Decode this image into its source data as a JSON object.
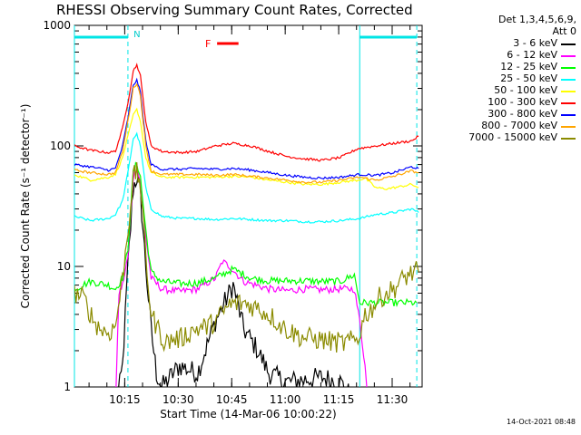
{
  "chart_data": {
    "type": "line",
    "title": "RHESSI Observing Summary Count Rates, Corrected",
    "xlabel": "Start Time (14-Mar-06 10:00:22)",
    "ylabel": "Corrected Count Rate (s⁻¹ detector⁻¹)",
    "y_scale": "log",
    "ylim": [
      1,
      1000
    ],
    "y_ticks": [
      {
        "value": 1,
        "label": "1"
      },
      {
        "value": 10,
        "label": "10"
      },
      {
        "value": 100,
        "label": "100"
      },
      {
        "value": 1000,
        "label": "1000"
      }
    ],
    "xlim_minutes": [
      0.5,
      98
    ],
    "x_ticks": [
      {
        "value": 14.6,
        "label": "10:15"
      },
      {
        "value": 29.6,
        "label": "10:30"
      },
      {
        "value": 44.6,
        "label": "10:45"
      },
      {
        "value": 59.6,
        "label": "11:00"
      },
      {
        "value": 74.6,
        "label": "11:15"
      },
      {
        "value": 89.6,
        "label": "11:30"
      }
    ],
    "legend_header": [
      "Det 1,3,4,5,6,9,",
      "Att 0"
    ],
    "legend_placement": "right",
    "annotations": {
      "night_label": "N",
      "flare_label": "F",
      "night_intervals_minutes": [
        [
          0.5,
          15.5
        ],
        [
          80.5,
          96.5
        ]
      ],
      "flare_interval_minutes": [
        40.5,
        46.5
      ]
    },
    "series": [
      {
        "name": "3 - 6 keV",
        "color": "#000000",
        "points": [
          [
            12,
            0.6
          ],
          [
            14,
            1.5
          ],
          [
            15.5,
            10
          ],
          [
            17,
            45
          ],
          [
            18,
            55
          ],
          [
            19,
            40
          ],
          [
            20.5,
            10
          ],
          [
            22,
            3
          ],
          [
            23.5,
            1.3
          ],
          [
            25,
            1
          ],
          [
            30,
            1.5
          ],
          [
            35,
            1.3
          ],
          [
            40,
            3.5
          ],
          [
            45,
            7
          ],
          [
            48,
            3
          ],
          [
            52,
            2
          ],
          [
            55,
            1.3
          ],
          [
            60,
            1.1
          ],
          [
            70,
            1.2
          ],
          [
            75,
            1.1
          ],
          [
            80,
            0.7
          ]
        ]
      },
      {
        "name": "6 - 12 keV",
        "color": "#ff00ff",
        "points": [
          [
            12,
            0.7
          ],
          [
            13,
            6
          ],
          [
            14,
            7
          ],
          [
            15.5,
            12
          ],
          [
            17,
            55
          ],
          [
            18,
            65
          ],
          [
            19,
            50
          ],
          [
            20.5,
            18
          ],
          [
            22,
            8
          ],
          [
            25,
            6.5
          ],
          [
            30,
            6.2
          ],
          [
            35,
            6.5
          ],
          [
            40,
            8
          ],
          [
            42,
            11
          ],
          [
            44,
            10
          ],
          [
            48,
            7.5
          ],
          [
            55,
            6.5
          ],
          [
            60,
            6.3
          ],
          [
            65,
            6.5
          ],
          [
            70,
            6.4
          ],
          [
            75,
            6.5
          ],
          [
            79,
            6.5
          ],
          [
            80.5,
            3.5
          ],
          [
            82,
            1.5
          ],
          [
            83,
            0.6
          ]
        ]
      },
      {
        "name": "12 - 25 keV",
        "color": "#00ff00",
        "points": [
          [
            0.5,
            6.5
          ],
          [
            5,
            7.5
          ],
          [
            10,
            7
          ],
          [
            12,
            6.5
          ],
          [
            14,
            8
          ],
          [
            15.5,
            14
          ],
          [
            17,
            60
          ],
          [
            18,
            72
          ],
          [
            19,
            55
          ],
          [
            20.5,
            20
          ],
          [
            22,
            9
          ],
          [
            25,
            7.5
          ],
          [
            30,
            7.2
          ],
          [
            35,
            7.3
          ],
          [
            40,
            8
          ],
          [
            45,
            9.5
          ],
          [
            50,
            8
          ],
          [
            55,
            7.6
          ],
          [
            60,
            7.6
          ],
          [
            65,
            7.6
          ],
          [
            70,
            7.5
          ],
          [
            75,
            7.5
          ],
          [
            79,
            8.5
          ],
          [
            80.5,
            5
          ],
          [
            96.5,
            5
          ]
        ]
      },
      {
        "name": "25 - 50 keV",
        "color": "#00ffff",
        "points": [
          [
            0.5,
            26
          ],
          [
            5,
            24
          ],
          [
            10,
            25
          ],
          [
            12,
            27
          ],
          [
            14,
            35
          ],
          [
            15.5,
            60
          ],
          [
            17,
            115
          ],
          [
            18,
            125
          ],
          [
            19,
            100
          ],
          [
            20.5,
            45
          ],
          [
            22,
            30
          ],
          [
            25,
            26
          ],
          [
            30,
            25
          ],
          [
            35,
            25
          ],
          [
            40,
            24.5
          ],
          [
            45,
            25
          ],
          [
            50,
            24.5
          ],
          [
            55,
            24
          ],
          [
            60,
            24
          ],
          [
            65,
            23.5
          ],
          [
            70,
            23.5
          ],
          [
            75,
            24
          ],
          [
            80.5,
            25
          ],
          [
            85,
            27
          ],
          [
            90,
            28
          ],
          [
            95,
            30
          ],
          [
            97,
            28
          ]
        ]
      },
      {
        "name": "50 - 100 keV",
        "color": "#ffff00",
        "points": [
          [
            0.5,
            58
          ],
          [
            5,
            52
          ],
          [
            10,
            55
          ],
          [
            12,
            58
          ],
          [
            14,
            80
          ],
          [
            15.5,
            120
          ],
          [
            17,
            180
          ],
          [
            18,
            200
          ],
          [
            19,
            160
          ],
          [
            20.5,
            80
          ],
          [
            22,
            60
          ],
          [
            25,
            55
          ],
          [
            30,
            55
          ],
          [
            35,
            55
          ],
          [
            40,
            55
          ],
          [
            45,
            56
          ],
          [
            50,
            55
          ],
          [
            55,
            52
          ],
          [
            60,
            50
          ],
          [
            65,
            48
          ],
          [
            70,
            48
          ],
          [
            75,
            50
          ],
          [
            80,
            52
          ],
          [
            82,
            54
          ],
          [
            85,
            45
          ],
          [
            88,
            44
          ],
          [
            92,
            46
          ],
          [
            95,
            48
          ],
          [
            97,
            45
          ]
        ]
      },
      {
        "name": "100 - 300 keV",
        "color": "#ff0000",
        "points": [
          [
            0.5,
            100
          ],
          [
            5,
            92
          ],
          [
            10,
            88
          ],
          [
            12,
            90
          ],
          [
            14,
            140
          ],
          [
            15.5,
            230
          ],
          [
            17,
            420
          ],
          [
            18,
            470
          ],
          [
            19,
            380
          ],
          [
            20.5,
            160
          ],
          [
            22,
            100
          ],
          [
            25,
            90
          ],
          [
            30,
            88
          ],
          [
            35,
            90
          ],
          [
            40,
            100
          ],
          [
            45,
            105
          ],
          [
            50,
            100
          ],
          [
            55,
            90
          ],
          [
            60,
            82
          ],
          [
            65,
            78
          ],
          [
            70,
            76
          ],
          [
            75,
            80
          ],
          [
            80,
            95
          ],
          [
            85,
            100
          ],
          [
            90,
            105
          ],
          [
            95,
            110
          ],
          [
            97,
            120
          ]
        ]
      },
      {
        "name": "300 - 800 keV",
        "color": "#0000ff",
        "points": [
          [
            0.5,
            70
          ],
          [
            5,
            67
          ],
          [
            10,
            63
          ],
          [
            12,
            65
          ],
          [
            14,
            100
          ],
          [
            15.5,
            170
          ],
          [
            17,
            320
          ],
          [
            18,
            350
          ],
          [
            19,
            280
          ],
          [
            20.5,
            110
          ],
          [
            22,
            70
          ],
          [
            25,
            64
          ],
          [
            30,
            64
          ],
          [
            35,
            65
          ],
          [
            40,
            64
          ],
          [
            45,
            65
          ],
          [
            50,
            63
          ],
          [
            55,
            60
          ],
          [
            60,
            57
          ],
          [
            65,
            55
          ],
          [
            70,
            54
          ],
          [
            75,
            55
          ],
          [
            80.5,
            58
          ],
          [
            85,
            57
          ],
          [
            90,
            60
          ],
          [
            95,
            67
          ],
          [
            97,
            65
          ]
        ]
      },
      {
        "name": "800 - 7000 keV",
        "color": "#ffa500",
        "points": [
          [
            0.5,
            63
          ],
          [
            5,
            60
          ],
          [
            10,
            58
          ],
          [
            12,
            60
          ],
          [
            14,
            90
          ],
          [
            15.5,
            160
          ],
          [
            17,
            300
          ],
          [
            18,
            330
          ],
          [
            19,
            260
          ],
          [
            20.5,
            100
          ],
          [
            22,
            62
          ],
          [
            25,
            58
          ],
          [
            30,
            58
          ],
          [
            35,
            58
          ],
          [
            40,
            57
          ],
          [
            45,
            58
          ],
          [
            50,
            56
          ],
          [
            55,
            54
          ],
          [
            60,
            52
          ],
          [
            65,
            50
          ],
          [
            70,
            50
          ],
          [
            75,
            52
          ],
          [
            80.5,
            55
          ],
          [
            85,
            52
          ],
          [
            90,
            56
          ],
          [
            95,
            62
          ],
          [
            97,
            60
          ]
        ]
      },
      {
        "name": "7000 - 15000 keV",
        "color": "#8b8b00",
        "points": [
          [
            0.5,
            6
          ],
          [
            3,
            5.5
          ],
          [
            6,
            3.5
          ],
          [
            8,
            3
          ],
          [
            10,
            2.8
          ],
          [
            12,
            3.2
          ],
          [
            14,
            8
          ],
          [
            15.5,
            20
          ],
          [
            17,
            55
          ],
          [
            18,
            60
          ],
          [
            19,
            48
          ],
          [
            20.5,
            12
          ],
          [
            22,
            4
          ],
          [
            24,
            3
          ],
          [
            26,
            2.3
          ],
          [
            28,
            2.5
          ],
          [
            30,
            2.5
          ],
          [
            34,
            3
          ],
          [
            38,
            3.2
          ],
          [
            40,
            3.5
          ],
          [
            44,
            4.8
          ],
          [
            48,
            5
          ],
          [
            52,
            4.5
          ],
          [
            56,
            3.8
          ],
          [
            58,
            3.3
          ],
          [
            60,
            3
          ],
          [
            64,
            2.6
          ],
          [
            68,
            2.5
          ],
          [
            72,
            2.4
          ],
          [
            76,
            2.3
          ],
          [
            80,
            2.5
          ],
          [
            82,
            4
          ],
          [
            84,
            4.5
          ],
          [
            86,
            5.5
          ],
          [
            88,
            6
          ],
          [
            90,
            6.5
          ],
          [
            92,
            7.5
          ],
          [
            94,
            8.5
          ],
          [
            96,
            9
          ],
          [
            97,
            9
          ]
        ]
      }
    ]
  }
}
